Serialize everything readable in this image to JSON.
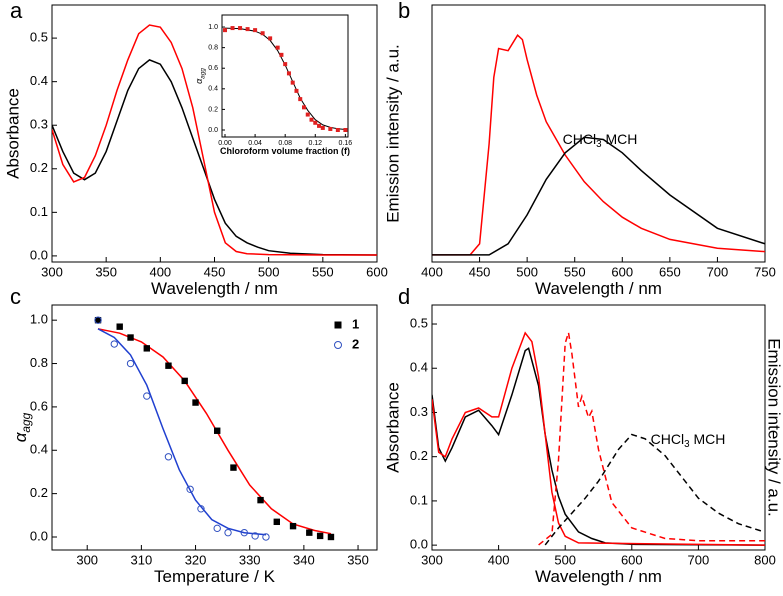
{
  "chart_data": [
    {
      "type": "line",
      "panel_label": "a",
      "xlabel": "Wavelength / nm",
      "ylabel": "Absorbance",
      "xlim": [
        300,
        600
      ],
      "xticks": [
        300,
        350,
        400,
        450,
        500,
        550,
        600
      ],
      "ylim": [
        -0.014,
        0.576
      ],
      "yticks": [
        {
          "value": 0,
          "label": "0.0"
        },
        {
          "value": 0.1,
          "label": "0.1"
        },
        {
          "value": 0.2,
          "label": "0.2"
        },
        {
          "value": 0.3,
          "label": "0.3"
        },
        {
          "value": 0.4,
          "label": "0.4"
        },
        {
          "value": 0.5,
          "label": "0.5"
        }
      ],
      "series": [
        {
          "color": "#000000",
          "mode": "line",
          "x": [
            300,
            310,
            320,
            330,
            340,
            350,
            360,
            370,
            380,
            390,
            400,
            410,
            420,
            430,
            440,
            450,
            460,
            470,
            480,
            490,
            500,
            520,
            550,
            600
          ],
          "values": [
            0.3,
            0.24,
            0.19,
            0.175,
            0.19,
            0.24,
            0.31,
            0.38,
            0.43,
            0.45,
            0.44,
            0.4,
            0.34,
            0.27,
            0.2,
            0.13,
            0.075,
            0.045,
            0.03,
            0.02,
            0.012,
            0.006,
            0.003,
            0.002
          ]
        },
        {
          "color": "#ff0000",
          "mode": "line",
          "x": [
            300,
            310,
            320,
            330,
            340,
            350,
            360,
            370,
            380,
            390,
            400,
            410,
            420,
            430,
            440,
            450,
            460,
            470,
            480,
            500,
            550,
            600
          ],
          "values": [
            0.29,
            0.21,
            0.17,
            0.18,
            0.23,
            0.3,
            0.38,
            0.45,
            0.51,
            0.53,
            0.525,
            0.49,
            0.43,
            0.34,
            0.22,
            0.1,
            0.03,
            0.01,
            0.005,
            0.003,
            0.002,
            0.002
          ]
        }
      ]
    },
    {
      "type": "scatter",
      "xlabel": "Chloroform volume fraction (f)",
      "ylabel": [
        "α",
        "agg"
      ],
      "xlim": [
        -0.004,
        0.1635
      ],
      "xticks": [
        {
          "value": 0,
          "label": "0.00"
        },
        {
          "value": 0.04,
          "label": "0.04"
        },
        {
          "value": 0.08,
          "label": "0.08"
        },
        {
          "value": 0.12,
          "label": "0.12"
        },
        {
          "value": 0.16,
          "label": "0.16"
        }
      ],
      "ylim": [
        -0.068,
        1.117
      ],
      "yticks": [
        {
          "value": 0,
          "label": "0.0"
        },
        {
          "value": 0.2,
          "label": "0.2"
        },
        {
          "value": 0.4,
          "label": "0.4"
        },
        {
          "value": 0.6,
          "label": "0.6"
        },
        {
          "value": 0.8,
          "label": "0.8"
        },
        {
          "value": 1,
          "label": "1.0"
        }
      ],
      "series": [
        {
          "color": "#000000",
          "mode": "line",
          "x": [
            0,
            0.02,
            0.04,
            0.05,
            0.06,
            0.07,
            0.08,
            0.09,
            0.1,
            0.11,
            0.12,
            0.13,
            0.14,
            0.15,
            0.16
          ],
          "values": [
            0.99,
            0.985,
            0.96,
            0.93,
            0.87,
            0.77,
            0.63,
            0.47,
            0.31,
            0.19,
            0.1,
            0.05,
            0.025,
            0.012,
            0.005
          ]
        },
        {
          "color": "#e02020",
          "mode": "markers",
          "marker": "square",
          "x": [
            0,
            0.01,
            0.02,
            0.03,
            0.04,
            0.05,
            0.06,
            0.07,
            0.075,
            0.08,
            0.085,
            0.09,
            0.095,
            0.1,
            0.105,
            0.11,
            0.115,
            0.12,
            0.125,
            0.13,
            0.14,
            0.15,
            0.16
          ],
          "values": [
            0.97,
            0.99,
            0.99,
            0.98,
            0.97,
            0.94,
            0.89,
            0.8,
            0.73,
            0.64,
            0.55,
            0.46,
            0.38,
            0.3,
            0.22,
            0.15,
            0.1,
            0.07,
            0.04,
            0.02,
            0.01,
            0,
            0
          ]
        }
      ]
    },
    {
      "type": "line",
      "panel_label": "b",
      "xlabel": "Wavelength / nm",
      "ylabel": "Emission intensity / a.u.",
      "annotation": [
        "CHCl",
        "3",
        " MCH"
      ],
      "xlim": [
        400,
        750
      ],
      "xticks": [
        400,
        450,
        500,
        550,
        600,
        650,
        700,
        750
      ],
      "ylim": [
        -0.032,
        1.126
      ],
      "series": [
        {
          "color": "#ff0000",
          "mode": "line",
          "x": [
            400,
            440,
            450,
            460,
            465,
            470,
            480,
            490,
            495,
            500,
            510,
            520,
            540,
            560,
            580,
            600,
            620,
            650,
            700,
            750
          ],
          "values": [
            0,
            0,
            0.05,
            0.5,
            0.8,
            0.93,
            0.92,
            0.99,
            0.97,
            0.88,
            0.72,
            0.6,
            0.45,
            0.33,
            0.24,
            0.17,
            0.12,
            0.07,
            0.03,
            0.015
          ]
        },
        {
          "color": "#000000",
          "mode": "line",
          "x": [
            400,
            460,
            480,
            500,
            520,
            540,
            560,
            580,
            600,
            620,
            650,
            700,
            750
          ],
          "values": [
            0,
            0,
            0.05,
            0.18,
            0.34,
            0.46,
            0.53,
            0.52,
            0.46,
            0.38,
            0.27,
            0.12,
            0.05
          ]
        }
      ]
    },
    {
      "type": "scatter",
      "panel_label": "c",
      "xlabel": "Temperature / K",
      "ylabel": [
        "α",
        "agg"
      ],
      "xlim": [
        293.5,
        353.5
      ],
      "xticks": [
        300,
        310,
        320,
        330,
        340,
        350
      ],
      "ylim": [
        -0.06,
        1.07
      ],
      "yticks": [
        {
          "value": 0,
          "label": "0.0"
        },
        {
          "value": 0.2,
          "label": "0.2"
        },
        {
          "value": 0.4,
          "label": "0.4"
        },
        {
          "value": 0.6,
          "label": "0.6"
        },
        {
          "value": 0.8,
          "label": "0.8"
        },
        {
          "value": 1,
          "label": "1.0"
        }
      ],
      "series": [
        {
          "name": "1",
          "color": "#000000",
          "mode": "markers",
          "marker": "square",
          "x": [
            302,
            306,
            308,
            311,
            315,
            318,
            320,
            324,
            327,
            332,
            335,
            338,
            341,
            343,
            345
          ],
          "values": [
            1.0,
            0.97,
            0.92,
            0.87,
            0.79,
            0.72,
            0.62,
            0.49,
            0.32,
            0.17,
            0.07,
            0.05,
            0.02,
            0.005,
            0
          ]
        },
        {
          "name": "2",
          "color": "#3050c0",
          "mode": "markers",
          "marker": "circle",
          "x": [
            302,
            305,
            308,
            311,
            315,
            319,
            321,
            324,
            326,
            329,
            331,
            333
          ],
          "values": [
            1.0,
            0.89,
            0.8,
            0.65,
            0.37,
            0.22,
            0.13,
            0.04,
            0.02,
            0.02,
            0.005,
            0
          ]
        },
        {
          "color": "#ff0000",
          "mode": "line",
          "x": [
            302,
            306,
            310,
            314,
            318,
            322,
            326,
            330,
            334,
            338,
            342,
            345
          ],
          "values": [
            0.96,
            0.94,
            0.9,
            0.83,
            0.72,
            0.57,
            0.4,
            0.24,
            0.13,
            0.06,
            0.03,
            0.015
          ]
        },
        {
          "color": "#2040d0",
          "mode": "line",
          "x": [
            302,
            305,
            308,
            311,
            314,
            317,
            320,
            323,
            326,
            329,
            333
          ],
          "values": [
            0.96,
            0.92,
            0.84,
            0.7,
            0.5,
            0.31,
            0.17,
            0.08,
            0.04,
            0.02,
            0.01
          ]
        }
      ]
    },
    {
      "type": "line",
      "panel_label": "d",
      "xlabel": "Wavelength / nm",
      "ylabel": "Absorbance",
      "y2label": "Emission intensity / a.u.",
      "annotation": [
        "CHCl",
        "3",
        " MCH"
      ],
      "xlim": [
        300,
        800
      ],
      "xticks": [
        300,
        400,
        500,
        600,
        700,
        800
      ],
      "ylim": [
        -0.011,
        0.543
      ],
      "yticks": [
        {
          "value": 0,
          "label": "0.0"
        },
        {
          "value": 0.1,
          "label": "0.1"
        },
        {
          "value": 0.2,
          "label": "0.2"
        },
        {
          "value": 0.3,
          "label": "0.3"
        },
        {
          "value": 0.4,
          "label": "0.4"
        },
        {
          "value": 0.5,
          "label": "0.5"
        }
      ],
      "y2lim": [
        -0.024,
        1.13
      ],
      "series": [
        {
          "color": "#000000",
          "mode": "line",
          "x": [
            300,
            310,
            320,
            330,
            350,
            370,
            390,
            400,
            420,
            440,
            445,
            460,
            470,
            480,
            490,
            500,
            520,
            540,
            560,
            600,
            800
          ],
          "values": [
            0.34,
            0.22,
            0.19,
            0.22,
            0.29,
            0.305,
            0.27,
            0.25,
            0.34,
            0.44,
            0.445,
            0.36,
            0.25,
            0.17,
            0.11,
            0.07,
            0.03,
            0.015,
            0.005,
            0.002,
            0
          ]
        },
        {
          "color": "#ff0000",
          "mode": "line",
          "x": [
            300,
            310,
            320,
            330,
            350,
            370,
            390,
            400,
            420,
            440,
            450,
            460,
            470,
            480,
            490,
            500,
            520,
            800
          ],
          "values": [
            0.33,
            0.21,
            0.2,
            0.24,
            0.3,
            0.31,
            0.29,
            0.29,
            0.4,
            0.48,
            0.46,
            0.38,
            0.25,
            0.12,
            0.05,
            0.02,
            0.005,
            0
          ]
        },
        {
          "color": "#ff0000",
          "mode": "line",
          "dash": true,
          "axis": "y2",
          "x": [
            460,
            480,
            490,
            500,
            505,
            510,
            520,
            525,
            535,
            540,
            550,
            570,
            600,
            650,
            700,
            800
          ],
          "values": [
            0,
            0.05,
            0.4,
            0.95,
            1.0,
            0.9,
            0.65,
            0.7,
            0.6,
            0.63,
            0.45,
            0.2,
            0.08,
            0.03,
            0.02,
            0.02
          ]
        },
        {
          "color": "#000000",
          "mode": "line",
          "dash": true,
          "axis": "y2",
          "x": [
            470,
            490,
            510,
            530,
            550,
            580,
            600,
            620,
            650,
            680,
            700,
            730,
            760,
            780,
            800
          ],
          "values": [
            0,
            0.08,
            0.15,
            0.22,
            0.3,
            0.45,
            0.52,
            0.5,
            0.42,
            0.3,
            0.22,
            0.15,
            0.1,
            0.08,
            0.06
          ]
        }
      ]
    }
  ]
}
